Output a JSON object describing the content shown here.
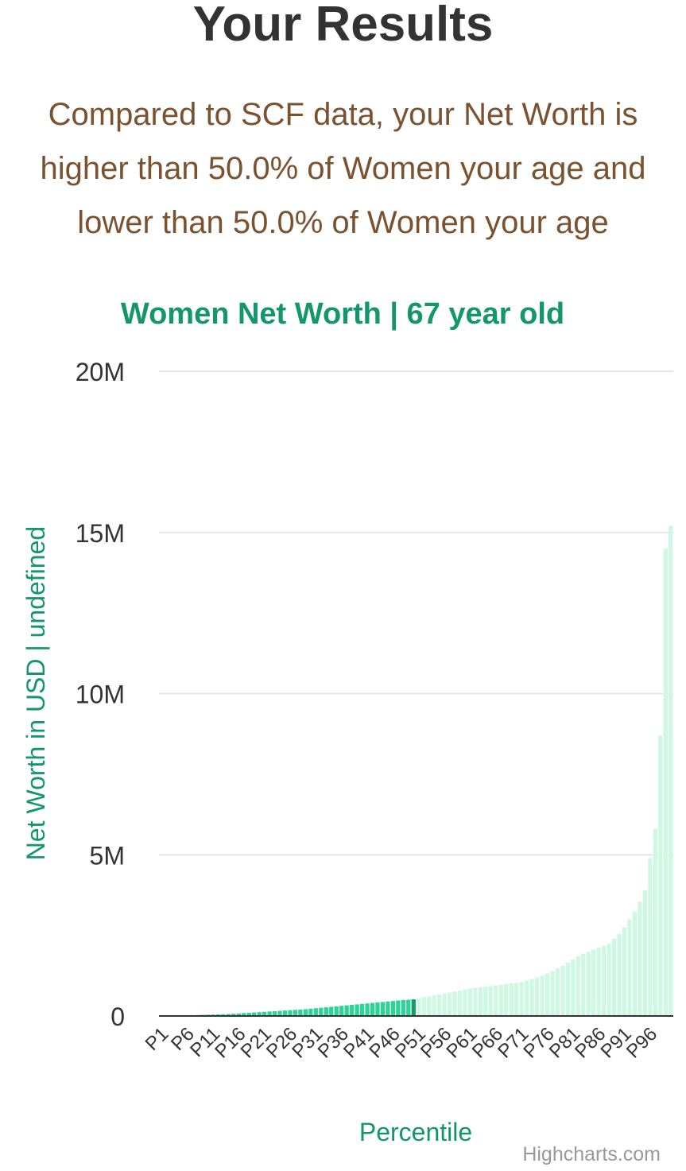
{
  "header": {
    "title": "Your Results",
    "summary_lines": [
      "Compared to SCF data, your Net Worth is",
      "higher than 50.0% of Women your age and",
      "lower than 50.0% of Women your age"
    ]
  },
  "colors": {
    "below_user": "#2ed495",
    "user": "#159a6c",
    "above_user": "#cff8e3",
    "accent": "#12966a",
    "summary_text": "#7a5230",
    "title_text": "#333333"
  },
  "chart_data": {
    "type": "bar",
    "title": "Women Net Worth | 67 year old",
    "xlabel": "Percentile",
    "ylabel": "Net Worth in USD | undefined",
    "ylim": [
      0,
      20000000
    ],
    "yticks": [
      0,
      5000000,
      10000000,
      15000000,
      20000000
    ],
    "ytick_labels": [
      "0",
      "5M",
      "10M",
      "15M",
      "20M"
    ],
    "xtick_labels": [
      "P1",
      "P6",
      "P11",
      "P16",
      "P21",
      "P26",
      "P31",
      "P36",
      "P41",
      "P46",
      "P51",
      "P56",
      "P61",
      "P66",
      "P71",
      "P76",
      "P81",
      "P86",
      "P91",
      "P96"
    ],
    "categories": [
      "P1",
      "P2",
      "P3",
      "P4",
      "P5",
      "P6",
      "P7",
      "P8",
      "P9",
      "P10",
      "P11",
      "P12",
      "P13",
      "P14",
      "P15",
      "P16",
      "P17",
      "P18",
      "P19",
      "P20",
      "P21",
      "P22",
      "P23",
      "P24",
      "P25",
      "P26",
      "P27",
      "P28",
      "P29",
      "P30",
      "P31",
      "P32",
      "P33",
      "P34",
      "P35",
      "P36",
      "P37",
      "P38",
      "P39",
      "P40",
      "P41",
      "P42",
      "P43",
      "P44",
      "P45",
      "P46",
      "P47",
      "P48",
      "P49",
      "P50",
      "P51",
      "P52",
      "P53",
      "P54",
      "P55",
      "P56",
      "P57",
      "P58",
      "P59",
      "P60",
      "P61",
      "P62",
      "P63",
      "P64",
      "P65",
      "P66",
      "P67",
      "P68",
      "P69",
      "P70",
      "P71",
      "P72",
      "P73",
      "P74",
      "P75",
      "P76",
      "P77",
      "P78",
      "P79",
      "P80",
      "P81",
      "P82",
      "P83",
      "P84",
      "P85",
      "P86",
      "P87",
      "P88",
      "P89",
      "P90",
      "P91",
      "P92",
      "P93",
      "P94",
      "P95",
      "P96",
      "P97",
      "P98",
      "P99",
      "P100"
    ],
    "values": [
      0,
      0,
      0,
      0,
      10000,
      20000,
      25000,
      30000,
      35000,
      40000,
      45000,
      50000,
      55000,
      60000,
      70000,
      80000,
      90000,
      100000,
      110000,
      120000,
      130000,
      140000,
      150000,
      160000,
      170000,
      180000,
      190000,
      200000,
      210000,
      225000,
      240000,
      255000,
      270000,
      285000,
      300000,
      315000,
      330000,
      345000,
      360000,
      375000,
      390000,
      405000,
      420000,
      435000,
      450000,
      465000,
      480000,
      495000,
      505000,
      515000,
      550000,
      580000,
      610000,
      640000,
      670000,
      700000,
      730000,
      760000,
      790000,
      820000,
      850000,
      870000,
      890000,
      910000,
      930000,
      950000,
      970000,
      990000,
      1010000,
      1030000,
      1060000,
      1100000,
      1150000,
      1200000,
      1250000,
      1320000,
      1400000,
      1480000,
      1560000,
      1650000,
      1750000,
      1850000,
      1930000,
      2000000,
      2060000,
      2120000,
      2180000,
      2250000,
      2400000,
      2550000,
      2750000,
      3000000,
      3250000,
      3550000,
      3900000,
      4900000,
      5800000,
      8700000,
      14500000,
      15200000
    ],
    "user_percentile_index": 49,
    "credit": "Highcharts.com"
  }
}
